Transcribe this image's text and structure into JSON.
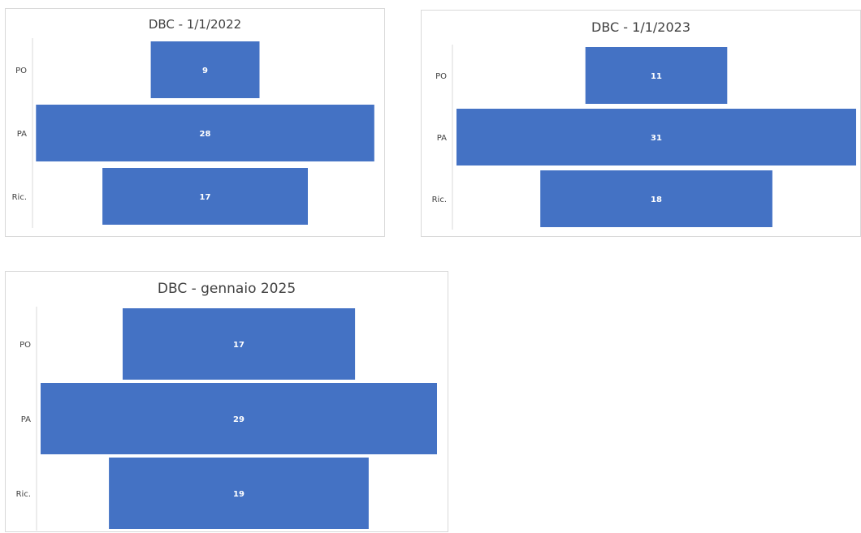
{
  "chart_data": [
    {
      "type": "bar",
      "orientation": "horizontal",
      "alignment": "centered",
      "title": "DBC - 1/1/2022",
      "categories": [
        "PO",
        "PA",
        "Ric."
      ],
      "values": [
        9,
        28,
        17
      ],
      "xlim": [
        0,
        28
      ],
      "grid": false,
      "legend": "none",
      "bar_color": "#4472C4"
    },
    {
      "type": "bar",
      "orientation": "horizontal",
      "alignment": "centered",
      "title": "DBC - 1/1/2023",
      "categories": [
        "PO",
        "PA",
        "Ric."
      ],
      "values": [
        11,
        31,
        18
      ],
      "xlim": [
        0,
        31
      ],
      "grid": false,
      "legend": "none",
      "bar_color": "#4472C4"
    },
    {
      "type": "bar",
      "orientation": "horizontal",
      "alignment": "centered",
      "title": "DBC - gennaio 2025",
      "categories": [
        "PO",
        "PA",
        "Ric."
      ],
      "values": [
        17,
        29,
        19
      ],
      "xlim": [
        0,
        29
      ],
      "grid": false,
      "legend": "none",
      "bar_color": "#4472C4"
    }
  ]
}
